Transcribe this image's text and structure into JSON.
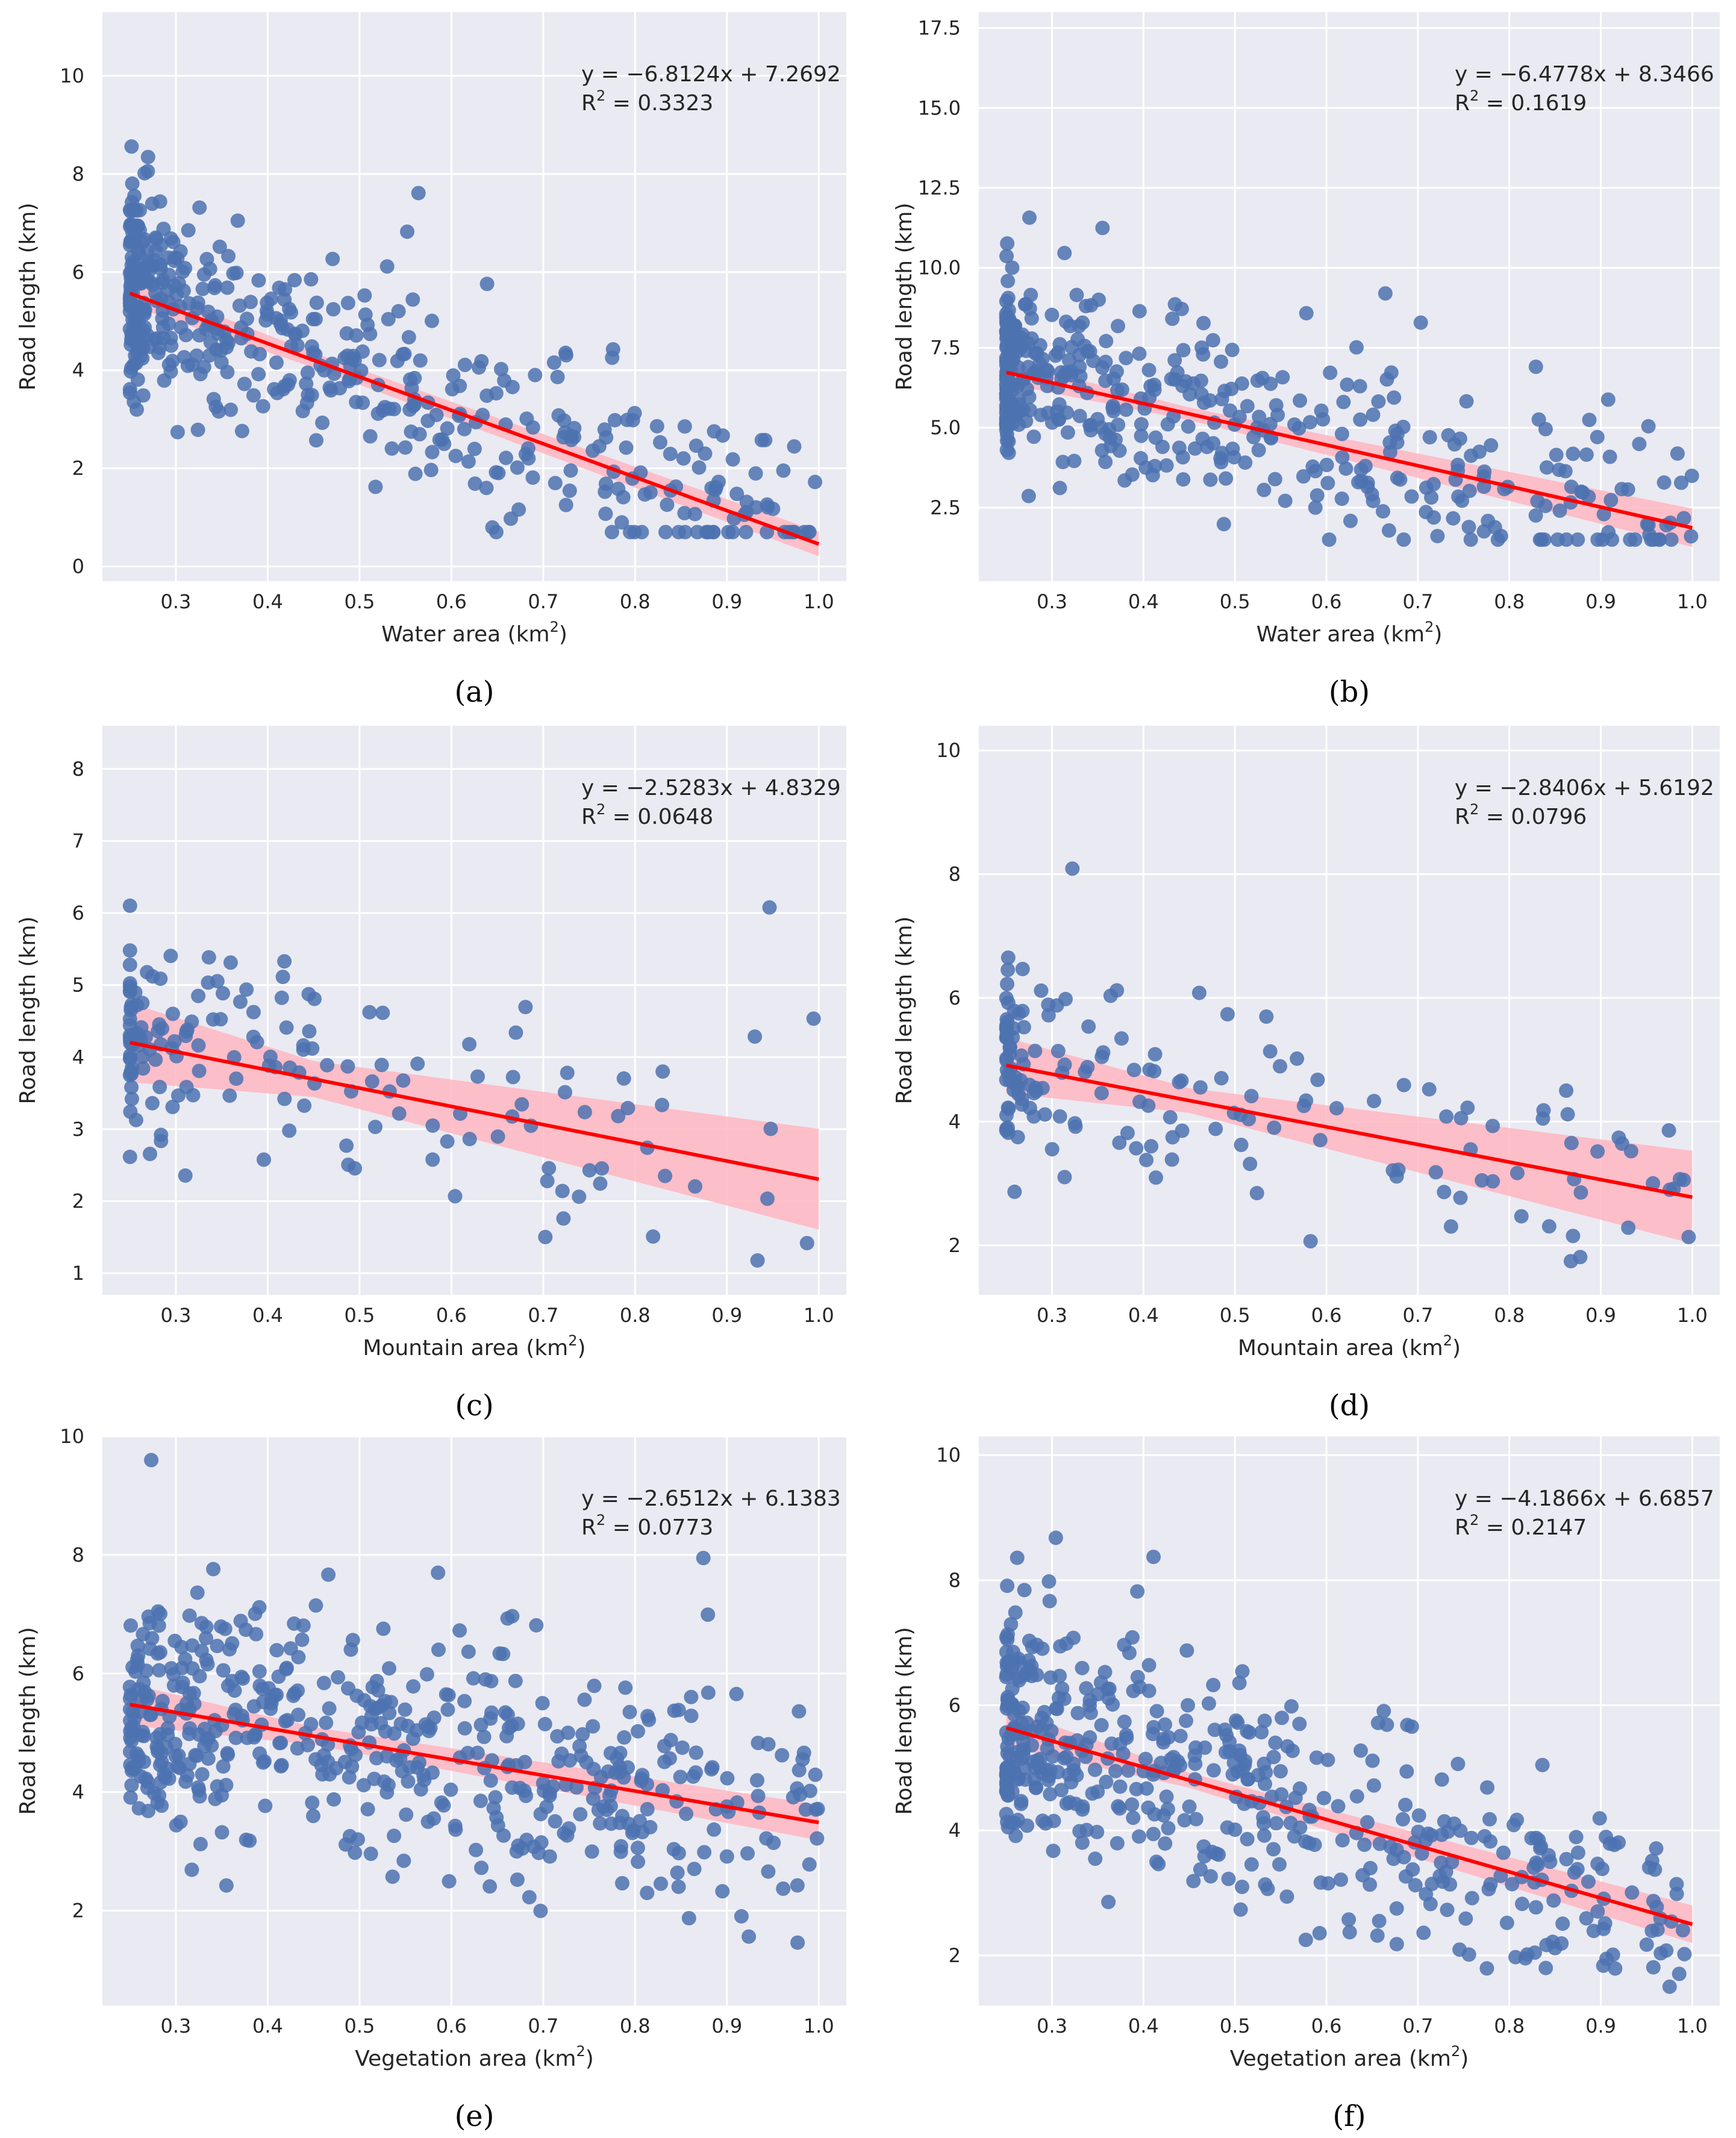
{
  "style": {
    "panel_bg": "#EAEAF2",
    "grid": "#FFFFFF",
    "point": "#4C72B0",
    "line": "#FF0000",
    "band": "#FFB6C1"
  },
  "chart_data": [
    {
      "type": "scatter",
      "caption": "(a)",
      "xlabel": "Water area (km",
      "xlabel_sup": "2",
      "xlabel_end": ")",
      "ylabel": "Road length (km)",
      "xlim": [
        0.22,
        1.03
      ],
      "ylim": [
        -0.3,
        11.3
      ],
      "xticks": [
        0.3,
        0.4,
        0.5,
        0.6,
        0.7,
        0.8,
        0.9,
        1.0
      ],
      "xtick_labels": [
        "0.3",
        "0.4",
        "0.5",
        "0.6",
        "0.7",
        "0.8",
        "0.9",
        "1.0"
      ],
      "yticks": [
        0,
        2,
        4,
        6,
        8,
        10
      ],
      "ytick_labels": [
        "0",
        "2",
        "4",
        "6",
        "8",
        "10"
      ],
      "equation": "y = −6.8124x + 7.2692",
      "r2_label": "R",
      "r2_sup": "2",
      "r2_value": " = 0.3323",
      "fit": {
        "slope": -6.8124,
        "intercept": 7.2692,
        "band": [
          0.25,
          0.15,
          0.25
        ]
      },
      "points": {
        "n": 480,
        "seed": 11,
        "noise": 1.9,
        "ymin": 0.7,
        "ymax": 11.2,
        "skew": 2.2
      }
    },
    {
      "type": "scatter",
      "caption": "(b)",
      "xlabel": "Water area (km",
      "xlabel_sup": "2",
      "xlabel_end": ")",
      "ylabel": "Road length (km)",
      "xlim": [
        0.22,
        1.03
      ],
      "ylim": [
        0.2,
        18.0
      ],
      "xticks": [
        0.3,
        0.4,
        0.5,
        0.6,
        0.7,
        0.8,
        0.9,
        1.0
      ],
      "xtick_labels": [
        "0.3",
        "0.4",
        "0.5",
        "0.6",
        "0.7",
        "0.8",
        "0.9",
        "1.0"
      ],
      "yticks": [
        2.5,
        5.0,
        7.5,
        10.0,
        12.5,
        15.0,
        17.5
      ],
      "ytick_labels": [
        "2.5",
        "5.0",
        "7.5",
        "10.0",
        "12.5",
        "15.0",
        "17.5"
      ],
      "equation": "y = −6.4778x + 8.3466",
      "r2_label": "R",
      "r2_sup": "2",
      "r2_value": " = 0.1619",
      "fit": {
        "slope": -6.4778,
        "intercept": 8.3466,
        "band": [
          0.35,
          0.2,
          0.6
        ]
      },
      "points": {
        "n": 430,
        "seed": 23,
        "noise": 2.6,
        "ymin": 1.5,
        "ymax": 17.6,
        "skew": 2.2
      }
    },
    {
      "type": "scatter",
      "caption": "(c)",
      "xlabel": "Mountain area (km",
      "xlabel_sup": "2",
      "xlabel_end": ")",
      "ylabel": "Road length (km)",
      "xlim": [
        0.22,
        1.03
      ],
      "ylim": [
        0.7,
        8.6
      ],
      "xticks": [
        0.3,
        0.4,
        0.5,
        0.6,
        0.7,
        0.8,
        0.9,
        1.0
      ],
      "xtick_labels": [
        "0.3",
        "0.4",
        "0.5",
        "0.6",
        "0.7",
        "0.8",
        "0.9",
        "1.0"
      ],
      "yticks": [
        1,
        2,
        3,
        4,
        5,
        6,
        7,
        8
      ],
      "ytick_labels": [
        "1",
        "2",
        "3",
        "4",
        "5",
        "6",
        "7",
        "8"
      ],
      "equation": "y = −2.5283x + 4.8329",
      "r2_label": "R",
      "r2_sup": "2",
      "r2_value": " = 0.0648",
      "fit": {
        "slope": -2.5283,
        "intercept": 4.8329,
        "band": [
          0.55,
          0.25,
          0.7
        ]
      },
      "points": {
        "n": 165,
        "seed": 37,
        "noise": 1.6,
        "ymin": 0.95,
        "ymax": 8.2,
        "skew": 2.6
      }
    },
    {
      "type": "scatter",
      "caption": "(d)",
      "xlabel": "Mountain area (km",
      "xlabel_sup": "2",
      "xlabel_end": ")",
      "ylabel": "Road length (km)",
      "xlim": [
        0.22,
        1.03
      ],
      "ylim": [
        1.2,
        10.4
      ],
      "xticks": [
        0.3,
        0.4,
        0.5,
        0.6,
        0.7,
        0.8,
        0.9,
        1.0
      ],
      "xtick_labels": [
        "0.3",
        "0.4",
        "0.5",
        "0.6",
        "0.7",
        "0.8",
        "0.9",
        "1.0"
      ],
      "yticks": [
        2,
        4,
        6,
        8,
        10
      ],
      "ytick_labels": [
        "2",
        "4",
        "6",
        "8",
        "10"
      ],
      "equation": "y = −2.8406x + 5.6192",
      "r2_label": "R",
      "r2_sup": "2",
      "r2_value": " = 0.0796",
      "fit": {
        "slope": -2.8406,
        "intercept": 5.6192,
        "band": [
          0.45,
          0.2,
          0.75
        ]
      },
      "points": {
        "n": 165,
        "seed": 53,
        "noise": 1.5,
        "ymin": 1.55,
        "ymax": 10.1,
        "skew": 2.6
      }
    },
    {
      "type": "scatter",
      "caption": "(e)",
      "xlabel": "Vegetation area (km",
      "xlabel_sup": "2",
      "xlabel_end": ")",
      "ylabel": "Road length (km)",
      "xlim": [
        0.22,
        1.03
      ],
      "ylim": [
        0.4,
        10.0
      ],
      "xticks": [
        0.3,
        0.4,
        0.5,
        0.6,
        0.7,
        0.8,
        0.9,
        1.0
      ],
      "xtick_labels": [
        "0.3",
        "0.4",
        "0.5",
        "0.6",
        "0.7",
        "0.8",
        "0.9",
        "1.0"
      ],
      "yticks": [
        2,
        4,
        6,
        8,
        10
      ],
      "ytick_labels": [
        "2",
        "4",
        "6",
        "8",
        "10"
      ],
      "equation": "y = −2.6512x + 6.1383",
      "r2_label": "R",
      "r2_sup": "2",
      "r2_value": " = 0.0773",
      "fit": {
        "slope": -2.6512,
        "intercept": 6.1383,
        "band": [
          0.35,
          0.15,
          0.3
        ]
      },
      "points": {
        "n": 520,
        "seed": 71,
        "noise": 1.9,
        "ymin": 0.65,
        "ymax": 9.6,
        "skew": 1.6
      }
    },
    {
      "type": "scatter",
      "caption": "(f)",
      "xlabel": "Vegetation area (km",
      "xlabel_sup": "2",
      "xlabel_end": ")",
      "ylabel": "Road length (km)",
      "xlim": [
        0.22,
        1.03
      ],
      "ylim": [
        1.2,
        10.3
      ],
      "xticks": [
        0.3,
        0.4,
        0.5,
        0.6,
        0.7,
        0.8,
        0.9,
        1.0
      ],
      "xtick_labels": [
        "0.3",
        "0.4",
        "0.5",
        "0.6",
        "0.7",
        "0.8",
        "0.9",
        "1.0"
      ],
      "yticks": [
        2,
        4,
        6,
        8,
        10
      ],
      "ytick_labels": [
        "2",
        "4",
        "6",
        "8",
        "10"
      ],
      "equation": "y = −4.1866x + 6.6857",
      "r2_label": "R",
      "r2_sup": "2",
      "r2_value": " = 0.2147",
      "fit": {
        "slope": -4.1866,
        "intercept": 6.6857,
        "band": [
          0.3,
          0.12,
          0.3
        ]
      },
      "points": {
        "n": 500,
        "seed": 89,
        "noise": 1.75,
        "ymin": 1.5,
        "ymax": 9.9,
        "skew": 1.9
      }
    }
  ]
}
